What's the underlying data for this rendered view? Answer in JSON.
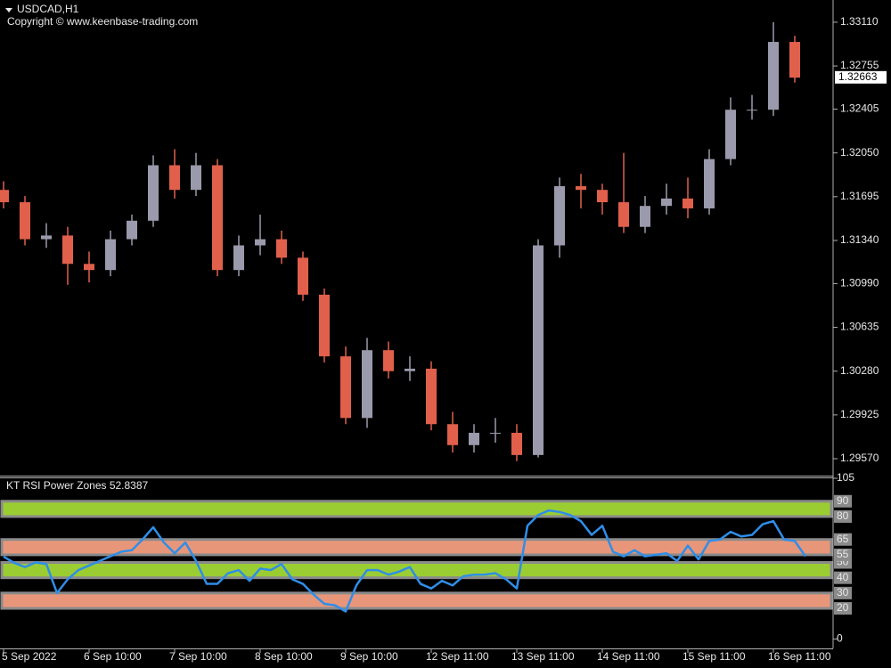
{
  "chart_data": [
    {
      "type": "candlestick",
      "title": "USDCAD,H1",
      "subtitle": "Copyright © www.keenbase-trading.com",
      "open": [
        1.3175,
        1.3165,
        1.3135,
        1.3138,
        1.3115,
        1.311,
        1.3135,
        1.315,
        1.3195,
        1.3175,
        1.3195,
        1.311,
        1.313,
        1.3135,
        1.312,
        1.309,
        1.304,
        1.299,
        1.3045,
        1.3028,
        1.303,
        1.2985,
        1.2968,
        1.2978,
        1.2978,
        1.296,
        1.313,
        1.3178,
        1.3175,
        1.3165,
        1.3145,
        1.3162,
        1.3168,
        1.316,
        1.32,
        1.324,
        1.324,
        1.3295
      ],
      "high": [
        1.3182,
        1.317,
        1.3148,
        1.3145,
        1.3125,
        1.3142,
        1.3155,
        1.3203,
        1.3208,
        1.3205,
        1.32,
        1.3138,
        1.3155,
        1.3142,
        1.3125,
        1.3095,
        1.3048,
        1.3055,
        1.3052,
        1.304,
        1.3036,
        1.2995,
        1.2985,
        1.299,
        1.2985,
        1.3135,
        1.3185,
        1.3188,
        1.318,
        1.3205,
        1.317,
        1.318,
        1.3185,
        1.3208,
        1.325,
        1.3252,
        1.3311,
        1.33
      ],
      "low": [
        1.316,
        1.313,
        1.3128,
        1.3098,
        1.31,
        1.3105,
        1.313,
        1.3145,
        1.3168,
        1.317,
        1.3105,
        1.3105,
        1.3122,
        1.3115,
        1.3085,
        1.3035,
        1.2985,
        1.2982,
        1.3022,
        1.302,
        1.298,
        1.2962,
        1.2962,
        1.297,
        1.2955,
        1.2958,
        1.312,
        1.316,
        1.3155,
        1.314,
        1.314,
        1.3155,
        1.3152,
        1.3155,
        1.3195,
        1.3232,
        1.3235,
        1.3262
      ],
      "close": [
        1.3165,
        1.3135,
        1.3138,
        1.3115,
        1.311,
        1.3135,
        1.315,
        1.3195,
        1.3175,
        1.3195,
        1.311,
        1.313,
        1.3135,
        1.312,
        1.309,
        1.304,
        1.299,
        1.3045,
        1.3028,
        1.303,
        1.2985,
        1.2968,
        1.2978,
        1.2978,
        1.296,
        1.313,
        1.3178,
        1.3175,
        1.3165,
        1.3145,
        1.3162,
        1.3168,
        1.316,
        1.32,
        1.324,
        1.324,
        1.3295,
        1.3266
      ],
      "up_color": "#9a9aac",
      "down_color": "#e0604c",
      "ylim": [
        1.2944,
        1.3329
      ],
      "yticks": [
        {
          "value": 1.3311,
          "label": "1.33110"
        },
        {
          "value": 1.32755,
          "label": "1.32755"
        },
        {
          "value": 1.32405,
          "label": "1.32405"
        },
        {
          "value": 1.3205,
          "label": "1.32050"
        },
        {
          "value": 1.31695,
          "label": "1.31695"
        },
        {
          "value": 1.3134,
          "label": "1.31340"
        },
        {
          "value": 1.3099,
          "label": "1.30990"
        },
        {
          "value": 1.30635,
          "label": "1.30635"
        },
        {
          "value": 1.3028,
          "label": "1.30280"
        },
        {
          "value": 1.29925,
          "label": "1.29925"
        },
        {
          "value": 1.2957,
          "label": "1.29570"
        }
      ],
      "last_price": 1.32663
    },
    {
      "type": "line",
      "title": "KT RSI Power Zones 52.8387",
      "categories": [
        "5 Sep 2022",
        null,
        null,
        null,
        null,
        null,
        null,
        null,
        "6 Sep 10:00",
        null,
        null,
        null,
        null,
        null,
        null,
        null,
        "7 Sep 10:00",
        null,
        null,
        null,
        null,
        null,
        null,
        null,
        "8 Sep 10:00",
        null,
        null,
        null,
        null,
        null,
        null,
        null,
        "9 Sep 10:00",
        null,
        null,
        null,
        null,
        null,
        null,
        null,
        "12 Sep 11:00",
        null,
        null,
        null,
        null,
        null,
        null,
        null,
        "13 Sep 11:00",
        null,
        null,
        null,
        null,
        null,
        null,
        null,
        "14 Sep 11:00",
        null,
        null,
        null,
        null,
        null,
        null,
        null,
        "15 Sep 11:00",
        null,
        null,
        null,
        null,
        null,
        null,
        null,
        "16 Sep 11:00",
        null,
        null,
        null
      ],
      "values": [
        53.8,
        49.7,
        47,
        50,
        49,
        30,
        39,
        45,
        48,
        51,
        54,
        57,
        58,
        65,
        73,
        63,
        56,
        63,
        51,
        36,
        36,
        43,
        45,
        38,
        46,
        45,
        49,
        39,
        36,
        29,
        23,
        22,
        18,
        35,
        45,
        45,
        42,
        44,
        47,
        36,
        33,
        38,
        35,
        41,
        42,
        42,
        43,
        39,
        33,
        74,
        81,
        84,
        83,
        81,
        77,
        68,
        74,
        57,
        54,
        58,
        54,
        55,
        56,
        51,
        61,
        52,
        64,
        65,
        70,
        67,
        68,
        75,
        77,
        65,
        64,
        54
      ],
      "color": "#2f8ee8",
      "zones": [
        {
          "from": 80,
          "to": 90,
          "color": "#9acd32"
        },
        {
          "from": 55,
          "to": 65,
          "color": "#e8967a"
        },
        {
          "from": 40,
          "to": 50,
          "color": "#9acd32"
        },
        {
          "from": 20,
          "to": 30,
          "color": "#e8967a"
        }
      ],
      "ylim": [
        -5,
        105
      ],
      "yticks": [
        0,
        20,
        30,
        40,
        50,
        55,
        65,
        80,
        90,
        105
      ]
    }
  ]
}
